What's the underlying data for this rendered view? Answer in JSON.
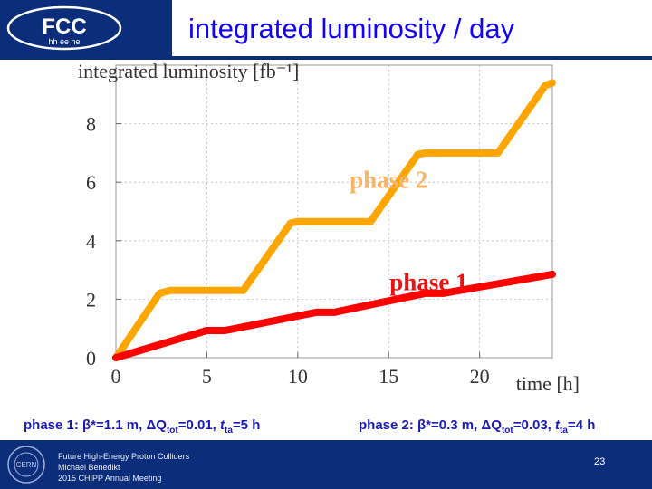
{
  "slide": {
    "title": "integrated luminosity / day",
    "logo_text": "FCC",
    "logo_subtext": "hh ee he",
    "captions": {
      "left": {
        "prefix": "phase 1: ",
        "beta": "β*=1.1 m, ",
        "dq": "ΔQ",
        "dq_sub": "tot",
        "dq_val": "=0.01, ",
        "t": "t",
        "t_sub": "ta",
        "t_val": "=5 h"
      },
      "right": {
        "prefix": "phase 2: ",
        "beta": "β*=0.3 m, ",
        "dq": "ΔQ",
        "dq_sub": "tot",
        "dq_val": "=0.03, ",
        "t": "t",
        "t_sub": "ta",
        "t_val": "=4 h"
      }
    },
    "footer": {
      "lines": [
        "Future High-Energy Proton Colliders",
        "Michael Benedikt",
        "2015 CHIPP Annual Meeting"
      ],
      "page_number": "23",
      "cern_logo_text": "CERN"
    }
  },
  "chart_data": {
    "type": "line",
    "title": "",
    "ylabel": "integrated luminosity [fb⁻¹]",
    "xlabel": "time [h]",
    "xlim": [
      0,
      24
    ],
    "ylim": [
      0,
      10
    ],
    "xticks": [
      0,
      5,
      10,
      15,
      20
    ],
    "yticks": [
      0,
      2,
      4,
      6,
      8
    ],
    "grid": true,
    "colors": {
      "phase2": "#ffa500",
      "phase1": "#ff0000",
      "annotation_phase2": "#f8b56a",
      "annotation_phase1": "#ee1111",
      "grid": "#bbbbbb"
    },
    "series": [
      {
        "name": "phase 2",
        "points": [
          [
            0,
            0
          ],
          [
            2.4,
            2.2
          ],
          [
            3,
            2.3
          ],
          [
            7,
            2.3
          ],
          [
            9.6,
            4.6
          ],
          [
            10,
            4.65
          ],
          [
            14,
            4.65
          ],
          [
            16.6,
            6.95
          ],
          [
            17,
            7.0
          ],
          [
            21,
            7.0
          ],
          [
            23.6,
            9.3
          ],
          [
            24,
            9.4
          ]
        ]
      },
      {
        "name": "phase 1",
        "points": [
          [
            0,
            0
          ],
          [
            5,
            0.93
          ],
          [
            6,
            0.93
          ],
          [
            11,
            1.55
          ],
          [
            12,
            1.55
          ],
          [
            17,
            2.2
          ],
          [
            18,
            2.2
          ],
          [
            24,
            2.85
          ]
        ]
      }
    ],
    "annotations": [
      {
        "text": "phase 2",
        "x": 15,
        "y": 5.8
      },
      {
        "text": "phase 1",
        "x": 17.2,
        "y": 2.3
      }
    ]
  }
}
